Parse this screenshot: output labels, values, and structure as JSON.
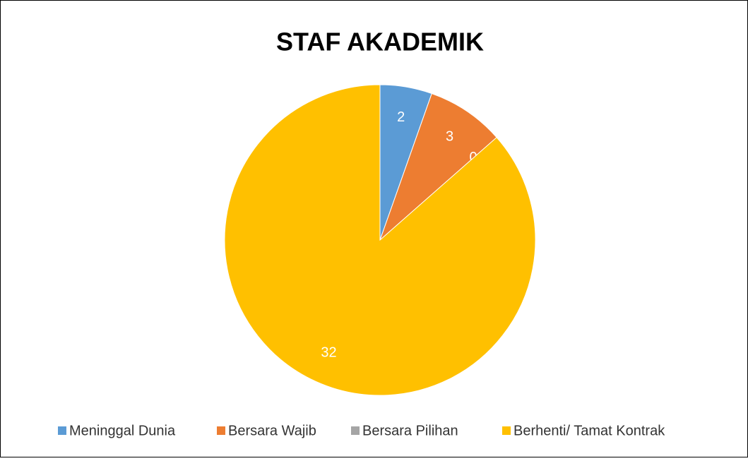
{
  "chart_data": {
    "type": "pie",
    "title": "STAF AKADEMIK",
    "categories": [
      "Meninggal Dunia",
      "Bersara Wajib",
      "Bersara Pilihan",
      "Berhenti/ Tamat Kontrak"
    ],
    "values": [
      2,
      3,
      0,
      32
    ],
    "colors": [
      "#5b9bd5",
      "#ed7d31",
      "#a5a5a5",
      "#ffc000"
    ],
    "legend": "bottom"
  }
}
